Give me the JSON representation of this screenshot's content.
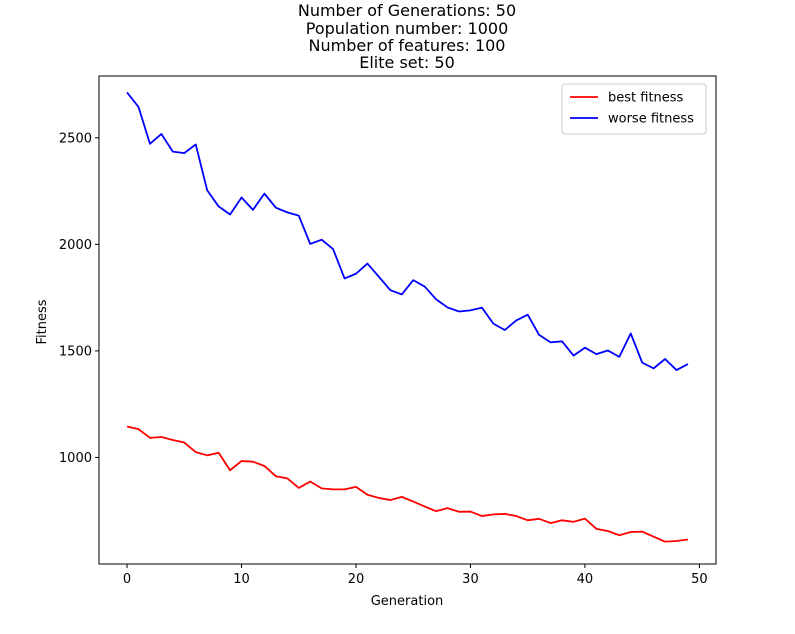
{
  "chart_data": {
    "type": "line",
    "title_lines": [
      "Number of Generations: 50",
      "Population number: 1000",
      "Number of features: 100",
      "Elite set: 50"
    ],
    "xlabel": "Generation",
    "ylabel": "Fitness",
    "xlim": [
      -2.45,
      51.45
    ],
    "ylim": [
      500,
      2790
    ],
    "xticks": [
      0,
      10,
      20,
      30,
      40,
      50
    ],
    "yticks": [
      1000,
      1500,
      2000,
      2500
    ],
    "grid": false,
    "legend_position": "upper right",
    "x": [
      0,
      1,
      2,
      3,
      4,
      5,
      6,
      7,
      8,
      9,
      10,
      11,
      12,
      13,
      14,
      15,
      16,
      17,
      18,
      19,
      20,
      21,
      22,
      23,
      24,
      25,
      26,
      27,
      28,
      29,
      30,
      31,
      32,
      33,
      34,
      35,
      36,
      37,
      38,
      39,
      40,
      41,
      42,
      43,
      44,
      45,
      46,
      47,
      48,
      49
    ],
    "series": [
      {
        "name": "best fitness",
        "color": "#ff0000",
        "values": [
          1145,
          1133,
          1092,
          1096,
          1082,
          1070,
          1025,
          1010,
          1022,
          940,
          983,
          980,
          960,
          912,
          902,
          857,
          887,
          855,
          850,
          850,
          862,
          825,
          810,
          800,
          815,
          793,
          770,
          748,
          762,
          745,
          746,
          725,
          733,
          735,
          725,
          705,
          712,
          692,
          705,
          698,
          713,
          665,
          655,
          635,
          650,
          652,
          628,
          605,
          608,
          615
        ]
      },
      {
        "name": "worse fitness",
        "color": "#0000ff",
        "values": [
          2713,
          2645,
          2472,
          2518,
          2435,
          2428,
          2469,
          2254,
          2178,
          2140,
          2220,
          2162,
          2238,
          2172,
          2150,
          2135,
          2002,
          2022,
          1978,
          1840,
          1862,
          1910,
          1848,
          1785,
          1765,
          1832,
          1802,
          1742,
          1704,
          1685,
          1690,
          1703,
          1628,
          1598,
          1643,
          1670,
          1575,
          1540,
          1545,
          1478,
          1515,
          1485,
          1502,
          1472,
          1582,
          1445,
          1418,
          1462,
          1410,
          1438
        ]
      }
    ]
  }
}
